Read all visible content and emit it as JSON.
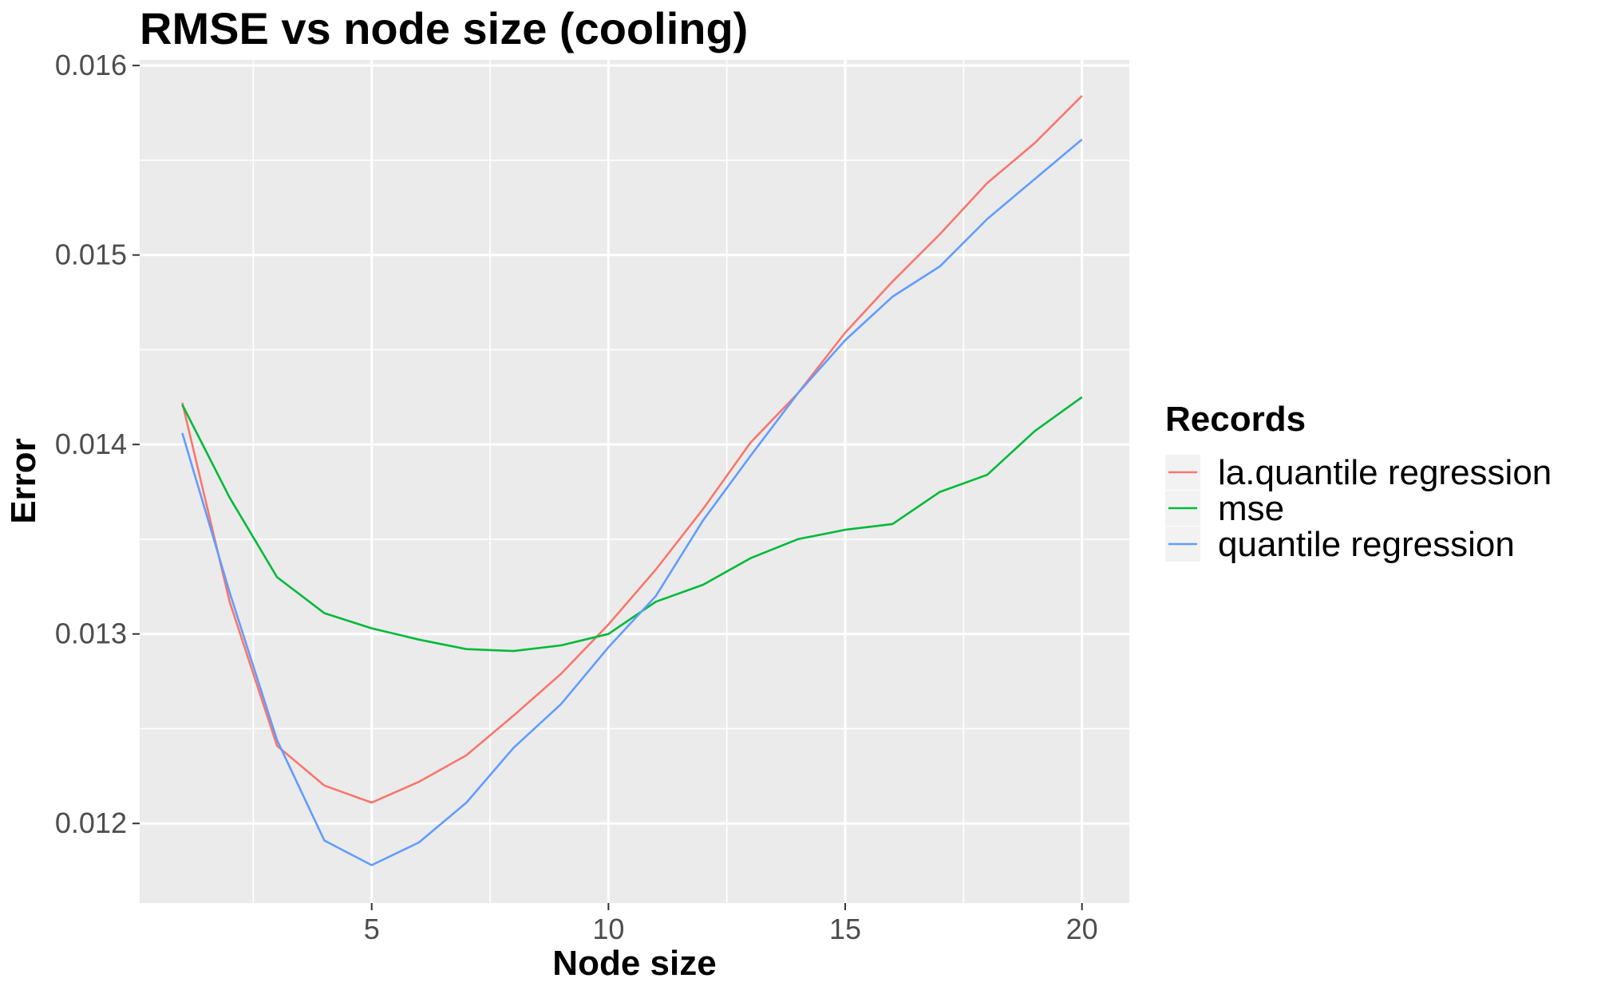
{
  "chart_data": {
    "type": "line",
    "title": "RMSE vs node size (cooling)",
    "xlabel": "Node size",
    "ylabel": "Error",
    "xlim": [
      0.1,
      21.0
    ],
    "ylim": [
      0.01158,
      0.01603
    ],
    "x_ticks": [
      5,
      10,
      15,
      20
    ],
    "x_tick_labels": [
      "5",
      "10",
      "15",
      "20"
    ],
    "y_ticks": [
      0.012,
      0.013,
      0.014,
      0.015,
      0.016
    ],
    "y_tick_labels": [
      "0.012",
      "0.013",
      "0.014",
      "0.015",
      "0.016"
    ],
    "grid": true,
    "legend": {
      "title": "Records",
      "position": "right"
    },
    "x": [
      1,
      2,
      3,
      4,
      5,
      6,
      7,
      8,
      9,
      10,
      11,
      12,
      13,
      14,
      15,
      16,
      17,
      18,
      19,
      20
    ],
    "series": [
      {
        "name": "la.quantile regression",
        "color": "#F8766D",
        "values": [
          0.01422,
          0.01317,
          0.01241,
          0.0122,
          0.01211,
          0.01222,
          0.01236,
          0.01257,
          0.01279,
          0.01305,
          0.01334,
          0.01366,
          0.01401,
          0.01427,
          0.01459,
          0.01486,
          0.01511,
          0.01538,
          0.01559,
          0.01584
        ]
      },
      {
        "name": "mse",
        "color": "#00BA38",
        "values": [
          0.01421,
          0.01372,
          0.0133,
          0.01311,
          0.01303,
          0.01297,
          0.01292,
          0.01291,
          0.01294,
          0.013,
          0.01317,
          0.01326,
          0.0134,
          0.0135,
          0.01355,
          0.01358,
          0.01375,
          0.01384,
          0.01407,
          0.01425
        ]
      },
      {
        "name": "quantile regression",
        "color": "#619CFF",
        "values": [
          0.01406,
          0.01322,
          0.01244,
          0.01191,
          0.01178,
          0.0119,
          0.01211,
          0.0124,
          0.01263,
          0.01293,
          0.0132,
          0.0136,
          0.01394,
          0.01427,
          0.01455,
          0.01478,
          0.01494,
          0.01519,
          0.0154,
          0.01561
        ]
      }
    ]
  }
}
